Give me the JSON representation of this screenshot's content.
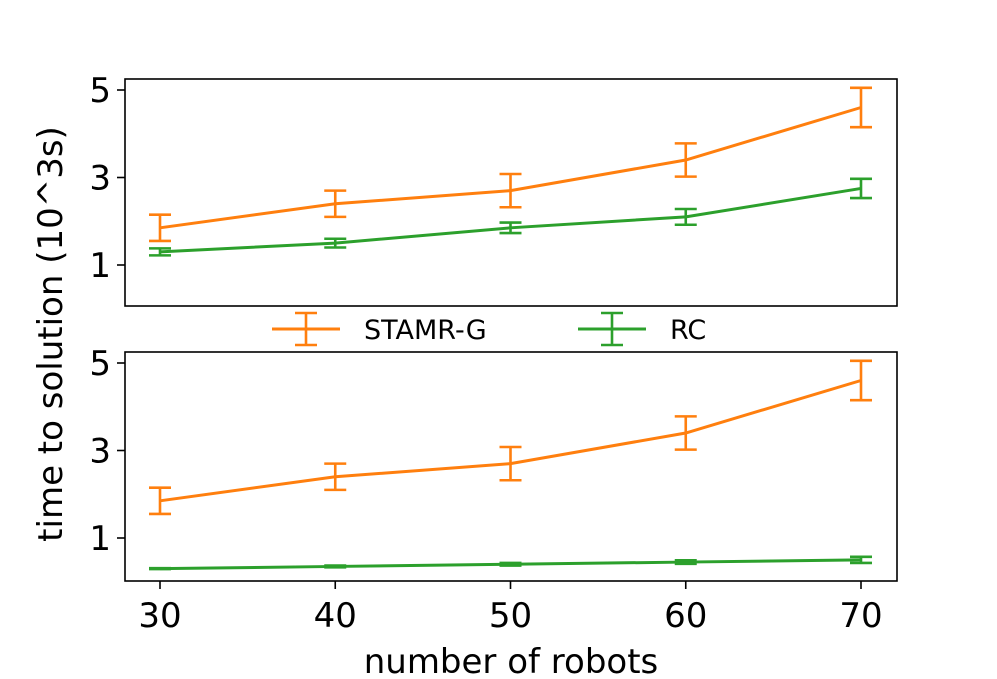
{
  "chart_data": [
    {
      "type": "line",
      "panel": "top",
      "title": "",
      "xlabel": "",
      "ylabel": "time to solution (10^3s)",
      "x": [
        30,
        40,
        50,
        60,
        70
      ],
      "ylim": [
        0,
        5.2
      ],
      "yticks": [
        1,
        3,
        5
      ],
      "series": [
        {
          "name": "STAMR-G",
          "color": "#ff7f0e",
          "values": [
            1.85,
            2.4,
            2.7,
            3.4,
            4.6
          ],
          "errors": [
            0.3,
            0.3,
            0.38,
            0.38,
            0.45
          ]
        },
        {
          "name": "RC",
          "color": "#2ca02c",
          "values": [
            1.3,
            1.5,
            1.85,
            2.1,
            2.75
          ],
          "errors": [
            0.08,
            0.1,
            0.12,
            0.18,
            0.22
          ]
        }
      ]
    },
    {
      "type": "line",
      "panel": "bottom",
      "title": "",
      "xlabel": "number of robots",
      "ylabel": "time to solution (10^3s)",
      "x": [
        30,
        40,
        50,
        60,
        70
      ],
      "xticks": [
        30,
        40,
        50,
        60,
        70
      ],
      "ylim": [
        0,
        5.2
      ],
      "yticks": [
        1,
        3,
        5
      ],
      "series": [
        {
          "name": "STAMR-G",
          "color": "#ff7f0e",
          "values": [
            1.85,
            2.4,
            2.7,
            3.4,
            4.6
          ],
          "errors": [
            0.3,
            0.3,
            0.38,
            0.38,
            0.45
          ]
        },
        {
          "name": "RC",
          "color": "#2ca02c",
          "values": [
            0.3,
            0.35,
            0.4,
            0.45,
            0.5
          ],
          "errors": [
            0.01,
            0.02,
            0.03,
            0.04,
            0.07
          ]
        }
      ]
    }
  ],
  "legend": {
    "placement": "between-panels",
    "entries": [
      {
        "label": "STAMR-G",
        "color": "#ff7f0e"
      },
      {
        "label": "RC",
        "color": "#2ca02c"
      }
    ]
  },
  "axes": {
    "ylabel": "time to solution (10^3s)",
    "xlabel": "number of robots"
  }
}
